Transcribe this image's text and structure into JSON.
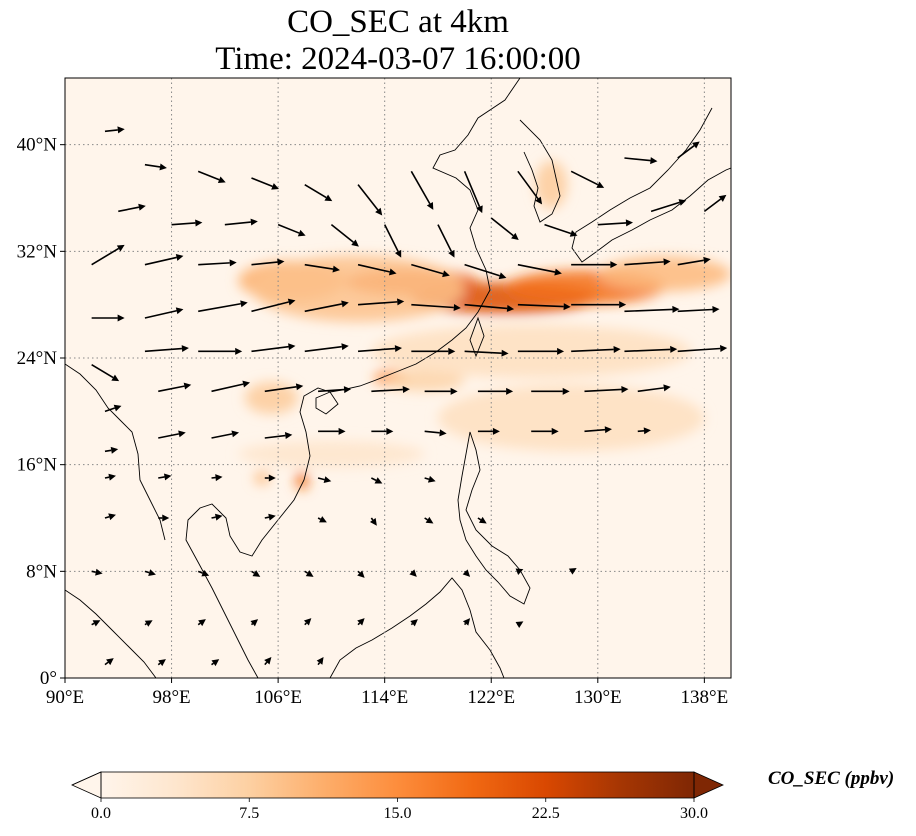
{
  "title": {
    "line1": "CO_SEC at 4km",
    "line2": "Time: 2024-03-07 16:00:00"
  },
  "map": {
    "lon_range": [
      90,
      140
    ],
    "lat_range": [
      0,
      45
    ],
    "lon_ticks": [
      {
        "value": 90,
        "label": "90°E"
      },
      {
        "value": 98,
        "label": "98°E"
      },
      {
        "value": 106,
        "label": "106°E"
      },
      {
        "value": 114,
        "label": "114°E"
      },
      {
        "value": 122,
        "label": "122°E"
      },
      {
        "value": 130,
        "label": "130°E"
      },
      {
        "value": 138,
        "label": "138°E"
      }
    ],
    "lat_ticks": [
      {
        "value": 0,
        "label": "0°"
      },
      {
        "value": 8,
        "label": "8°N"
      },
      {
        "value": 16,
        "label": "16°N"
      },
      {
        "value": 24,
        "label": "24°N"
      },
      {
        "value": 32,
        "label": "32°N"
      },
      {
        "value": 40,
        "label": "40°N"
      }
    ],
    "gridlines": "dotted",
    "field_plumes_ppbv": [
      {
        "lon": 123,
        "lat": 28.5,
        "value": 22,
        "rx": 7,
        "ry": 1.2
      },
      {
        "lon": 116,
        "lat": 29.7,
        "value": 20,
        "rx": 5,
        "ry": 1.0
      },
      {
        "lon": 129,
        "lat": 29.3,
        "value": 18,
        "rx": 6,
        "ry": 1.3
      },
      {
        "lon": 135,
        "lat": 30.3,
        "value": 10,
        "rx": 5,
        "ry": 1.3
      },
      {
        "lon": 107,
        "lat": 29.8,
        "value": 11,
        "rx": 4,
        "ry": 1.5
      },
      {
        "lon": 112,
        "lat": 29.2,
        "value": 9,
        "rx": 8,
        "ry": 2.5
      },
      {
        "lon": 114.5,
        "lat": 22.5,
        "value": 15,
        "rx": 1.3,
        "ry": 0.6
      },
      {
        "lon": 117,
        "lat": 22.3,
        "value": 7,
        "rx": 3,
        "ry": 0.8
      },
      {
        "lon": 107.8,
        "lat": 14.8,
        "value": 18,
        "rx": 0.5,
        "ry": 0.7
      },
      {
        "lon": 104.8,
        "lat": 15.0,
        "value": 10,
        "rx": 0.6,
        "ry": 0.5
      },
      {
        "lon": 105.5,
        "lat": 21.0,
        "value": 8,
        "rx": 2.0,
        "ry": 1.2
      },
      {
        "lon": 126.5,
        "lat": 37.0,
        "value": 8,
        "rx": 1.2,
        "ry": 1.8
      },
      {
        "lon": 128,
        "lat": 19.5,
        "value": 5,
        "rx": 10,
        "ry": 2.5
      },
      {
        "lon": 110,
        "lat": 16.8,
        "value": 4,
        "rx": 7,
        "ry": 1.0
      },
      {
        "lon": 125,
        "lat": 24.5,
        "value": 5,
        "rx": 12,
        "ry": 2.0
      }
    ],
    "wind_vectors_deg_per_unit": [
      {
        "lon": 93,
        "lat": 41,
        "u": 1.8,
        "v": 0.2
      },
      {
        "lon": 96,
        "lat": 38.5,
        "u": 2.0,
        "v": -0.3
      },
      {
        "lon": 100,
        "lat": 38,
        "u": 2.5,
        "v": -1.0
      },
      {
        "lon": 104,
        "lat": 37.5,
        "u": 2.5,
        "v": -1.0
      },
      {
        "lon": 108,
        "lat": 37,
        "u": 2.5,
        "v": -1.5
      },
      {
        "lon": 112,
        "lat": 37,
        "u": 2.2,
        "v": -2.8
      },
      {
        "lon": 116,
        "lat": 38,
        "u": 2.0,
        "v": -3.5
      },
      {
        "lon": 120,
        "lat": 38,
        "u": 1.6,
        "v": -3.8
      },
      {
        "lon": 124,
        "lat": 38,
        "u": 2.2,
        "v": -3.0
      },
      {
        "lon": 128,
        "lat": 38,
        "u": 3.0,
        "v": -1.5
      },
      {
        "lon": 132,
        "lat": 39,
        "u": 3.0,
        "v": -0.3
      },
      {
        "lon": 136,
        "lat": 39,
        "u": 2.0,
        "v": 1.5
      },
      {
        "lon": 94,
        "lat": 35,
        "u": 2.5,
        "v": 0.5
      },
      {
        "lon": 98,
        "lat": 34,
        "u": 2.8,
        "v": 0.2
      },
      {
        "lon": 102,
        "lat": 34,
        "u": 3.0,
        "v": 0.3
      },
      {
        "lon": 106,
        "lat": 34,
        "u": 2.5,
        "v": -1.0
      },
      {
        "lon": 110,
        "lat": 34,
        "u": 2.5,
        "v": -2.0
      },
      {
        "lon": 114,
        "lat": 34,
        "u": 1.5,
        "v": -3.0
      },
      {
        "lon": 118,
        "lat": 34,
        "u": 1.5,
        "v": -3.0
      },
      {
        "lon": 122,
        "lat": 34.5,
        "u": 2.5,
        "v": -2.0
      },
      {
        "lon": 126,
        "lat": 34,
        "u": 3.0,
        "v": -1.0
      },
      {
        "lon": 130,
        "lat": 34,
        "u": 3.2,
        "v": 0.2
      },
      {
        "lon": 134,
        "lat": 35,
        "u": 3.2,
        "v": 1.0
      },
      {
        "lon": 138,
        "lat": 35,
        "u": 2.0,
        "v": 1.5
      },
      {
        "lon": 92,
        "lat": 31,
        "u": 3.0,
        "v": 1.8
      },
      {
        "lon": 96,
        "lat": 31,
        "u": 3.5,
        "v": 0.8
      },
      {
        "lon": 100,
        "lat": 31,
        "u": 3.5,
        "v": 0.2
      },
      {
        "lon": 104,
        "lat": 31,
        "u": 3.0,
        "v": 0.3
      },
      {
        "lon": 108,
        "lat": 31,
        "u": 3.2,
        "v": -0.5
      },
      {
        "lon": 112,
        "lat": 31,
        "u": 3.5,
        "v": -0.8
      },
      {
        "lon": 116,
        "lat": 31,
        "u": 3.5,
        "v": -1.0
      },
      {
        "lon": 120,
        "lat": 31,
        "u": 3.8,
        "v": -1.2
      },
      {
        "lon": 124,
        "lat": 31,
        "u": 4.0,
        "v": -0.8
      },
      {
        "lon": 128,
        "lat": 31,
        "u": 4.2,
        "v": 0.0
      },
      {
        "lon": 132,
        "lat": 31,
        "u": 4.2,
        "v": 0.3
      },
      {
        "lon": 136,
        "lat": 31,
        "u": 3.0,
        "v": 0.5
      },
      {
        "lon": 92,
        "lat": 27,
        "u": 3.0,
        "v": 0.0
      },
      {
        "lon": 96,
        "lat": 27,
        "u": 3.5,
        "v": 0.8
      },
      {
        "lon": 100,
        "lat": 27.5,
        "u": 4.5,
        "v": 0.8
      },
      {
        "lon": 104,
        "lat": 27.5,
        "u": 4.0,
        "v": 1.0
      },
      {
        "lon": 108,
        "lat": 27.5,
        "u": 4.0,
        "v": 0.8
      },
      {
        "lon": 112,
        "lat": 28,
        "u": 4.2,
        "v": 0.3
      },
      {
        "lon": 116,
        "lat": 28,
        "u": 4.5,
        "v": -0.3
      },
      {
        "lon": 120,
        "lat": 28,
        "u": 4.5,
        "v": -0.4
      },
      {
        "lon": 124,
        "lat": 28,
        "u": 4.8,
        "v": -0.2
      },
      {
        "lon": 128,
        "lat": 28,
        "u": 5.0,
        "v": 0.0
      },
      {
        "lon": 132,
        "lat": 27.5,
        "u": 5.0,
        "v": 0.2
      },
      {
        "lon": 136,
        "lat": 27.5,
        "u": 3.8,
        "v": 0.2
      },
      {
        "lon": 92,
        "lat": 23.5,
        "u": 2.5,
        "v": -1.5
      },
      {
        "lon": 96,
        "lat": 24.5,
        "u": 4.0,
        "v": 0.3
      },
      {
        "lon": 100,
        "lat": 24.5,
        "u": 4.0,
        "v": 0.0
      },
      {
        "lon": 104,
        "lat": 24.5,
        "u": 4.0,
        "v": 0.5
      },
      {
        "lon": 108,
        "lat": 24.5,
        "u": 4.0,
        "v": 0.5
      },
      {
        "lon": 112,
        "lat": 24.5,
        "u": 4.0,
        "v": 0.3
      },
      {
        "lon": 116,
        "lat": 24.5,
        "u": 4.0,
        "v": 0.0
      },
      {
        "lon": 120,
        "lat": 24.5,
        "u": 4.0,
        "v": -0.2
      },
      {
        "lon": 124,
        "lat": 24.5,
        "u": 4.2,
        "v": 0.0
      },
      {
        "lon": 128,
        "lat": 24.5,
        "u": 4.5,
        "v": 0.2
      },
      {
        "lon": 132,
        "lat": 24.5,
        "u": 4.8,
        "v": 0.2
      },
      {
        "lon": 136,
        "lat": 24.5,
        "u": 4.5,
        "v": 0.3
      },
      {
        "lon": 93,
        "lat": 20,
        "u": 1.5,
        "v": 0.5
      },
      {
        "lon": 97,
        "lat": 21.5,
        "u": 3.0,
        "v": 0.6
      },
      {
        "lon": 101,
        "lat": 21.5,
        "u": 3.5,
        "v": 0.8
      },
      {
        "lon": 105,
        "lat": 21.5,
        "u": 3.5,
        "v": 0.5
      },
      {
        "lon": 109,
        "lat": 21.5,
        "u": 3.0,
        "v": 0.2
      },
      {
        "lon": 113,
        "lat": 21.5,
        "u": 3.5,
        "v": 0.2
      },
      {
        "lon": 117,
        "lat": 21.5,
        "u": 3.0,
        "v": 0.0
      },
      {
        "lon": 121,
        "lat": 21.5,
        "u": 3.2,
        "v": 0.0
      },
      {
        "lon": 125,
        "lat": 21.5,
        "u": 3.5,
        "v": 0.0
      },
      {
        "lon": 129,
        "lat": 21.5,
        "u": 4.0,
        "v": 0.2
      },
      {
        "lon": 133,
        "lat": 21.5,
        "u": 3.0,
        "v": 0.4
      },
      {
        "lon": 93,
        "lat": 17,
        "u": 1.2,
        "v": 0.2
      },
      {
        "lon": 97,
        "lat": 18,
        "u": 2.5,
        "v": 0.5
      },
      {
        "lon": 101,
        "lat": 18,
        "u": 2.5,
        "v": 0.5
      },
      {
        "lon": 105,
        "lat": 18,
        "u": 2.5,
        "v": 0.3
      },
      {
        "lon": 109,
        "lat": 18.5,
        "u": 2.5,
        "v": 0.0
      },
      {
        "lon": 113,
        "lat": 18.5,
        "u": 2.0,
        "v": 0.0
      },
      {
        "lon": 117,
        "lat": 18.5,
        "u": 2.0,
        "v": -0.2
      },
      {
        "lon": 121,
        "lat": 18.5,
        "u": 2.0,
        "v": 0.0
      },
      {
        "lon": 125,
        "lat": 18.5,
        "u": 2.5,
        "v": 0.0
      },
      {
        "lon": 129,
        "lat": 18.5,
        "u": 2.5,
        "v": 0.2
      },
      {
        "lon": 133,
        "lat": 18.5,
        "u": 1.2,
        "v": 0.1
      },
      {
        "lon": 93,
        "lat": 15,
        "u": 1.0,
        "v": 0.2
      },
      {
        "lon": 97,
        "lat": 15,
        "u": 1.2,
        "v": 0.2
      },
      {
        "lon": 101,
        "lat": 15,
        "u": 1.0,
        "v": 0.1
      },
      {
        "lon": 105,
        "lat": 15,
        "u": 1.0,
        "v": 0.0
      },
      {
        "lon": 109,
        "lat": 15,
        "u": 1.2,
        "v": -0.3
      },
      {
        "lon": 113,
        "lat": 15,
        "u": 1.0,
        "v": -0.5
      },
      {
        "lon": 117,
        "lat": 15,
        "u": 1.0,
        "v": -0.3
      },
      {
        "lon": 93,
        "lat": 12,
        "u": 1.0,
        "v": 0.3
      },
      {
        "lon": 97,
        "lat": 12,
        "u": 1.0,
        "v": 0.0
      },
      {
        "lon": 101,
        "lat": 12,
        "u": 1.0,
        "v": 0.2
      },
      {
        "lon": 105,
        "lat": 12,
        "u": 1.0,
        "v": 0.2
      },
      {
        "lon": 109,
        "lat": 12,
        "u": 0.8,
        "v": -0.4
      },
      {
        "lon": 113,
        "lat": 12,
        "u": 0.5,
        "v": -0.7
      },
      {
        "lon": 117,
        "lat": 12,
        "u": 0.8,
        "v": -0.5
      },
      {
        "lon": 121,
        "lat": 12,
        "u": 0.8,
        "v": -0.5
      },
      {
        "lon": 92,
        "lat": 8,
        "u": 1.0,
        "v": -0.2
      },
      {
        "lon": 96,
        "lat": 8,
        "u": 1.0,
        "v": -0.3
      },
      {
        "lon": 100,
        "lat": 8,
        "u": 1.0,
        "v": -0.4
      },
      {
        "lon": 104,
        "lat": 8,
        "u": 0.8,
        "v": -0.5
      },
      {
        "lon": 108,
        "lat": 8,
        "u": 0.8,
        "v": -0.5
      },
      {
        "lon": 112,
        "lat": 8,
        "u": 0.6,
        "v": -0.6
      },
      {
        "lon": 116,
        "lat": 8,
        "u": 0.5,
        "v": -0.5
      },
      {
        "lon": 120,
        "lat": 8,
        "u": 0.5,
        "v": -0.5
      },
      {
        "lon": 124,
        "lat": 8,
        "u": 0.5,
        "v": 0.2
      },
      {
        "lon": 128,
        "lat": 8,
        "u": 0.5,
        "v": 0.3
      },
      {
        "lon": 92,
        "lat": 4,
        "u": 0.8,
        "v": 0.4
      },
      {
        "lon": 96,
        "lat": 4,
        "u": 0.7,
        "v": 0.4
      },
      {
        "lon": 100,
        "lat": 4,
        "u": 0.7,
        "v": 0.5
      },
      {
        "lon": 104,
        "lat": 4,
        "u": 0.6,
        "v": 0.5
      },
      {
        "lon": 108,
        "lat": 4,
        "u": 0.6,
        "v": 0.6
      },
      {
        "lon": 112,
        "lat": 4,
        "u": 0.6,
        "v": 0.6
      },
      {
        "lon": 116,
        "lat": 4,
        "u": 0.6,
        "v": 0.5
      },
      {
        "lon": 120,
        "lat": 4,
        "u": 0.5,
        "v": 0.6
      },
      {
        "lon": 124,
        "lat": 4,
        "u": 0.5,
        "v": 0.3
      },
      {
        "lon": 93,
        "lat": 1,
        "u": 0.8,
        "v": 0.6
      },
      {
        "lon": 97,
        "lat": 1,
        "u": 0.7,
        "v": 0.5
      },
      {
        "lon": 101,
        "lat": 1,
        "u": 0.7,
        "v": 0.5
      },
      {
        "lon": 105,
        "lat": 1,
        "u": 0.6,
        "v": 0.7
      },
      {
        "lon": 109,
        "lat": 1,
        "u": 0.5,
        "v": 0.7
      }
    ]
  },
  "colorbar": {
    "label": "CO_SEC (ppbv)",
    "min": 0.0,
    "max": 30.0,
    "ticks": [
      "0.0",
      "7.5",
      "15.0",
      "22.5",
      "30.0"
    ],
    "extend": "both",
    "colormap": [
      "#fff5eb",
      "#fee6ce",
      "#fdd0a2",
      "#fdae6b",
      "#fd8d3c",
      "#f16913",
      "#d94801",
      "#a63603",
      "#7f2704"
    ]
  }
}
